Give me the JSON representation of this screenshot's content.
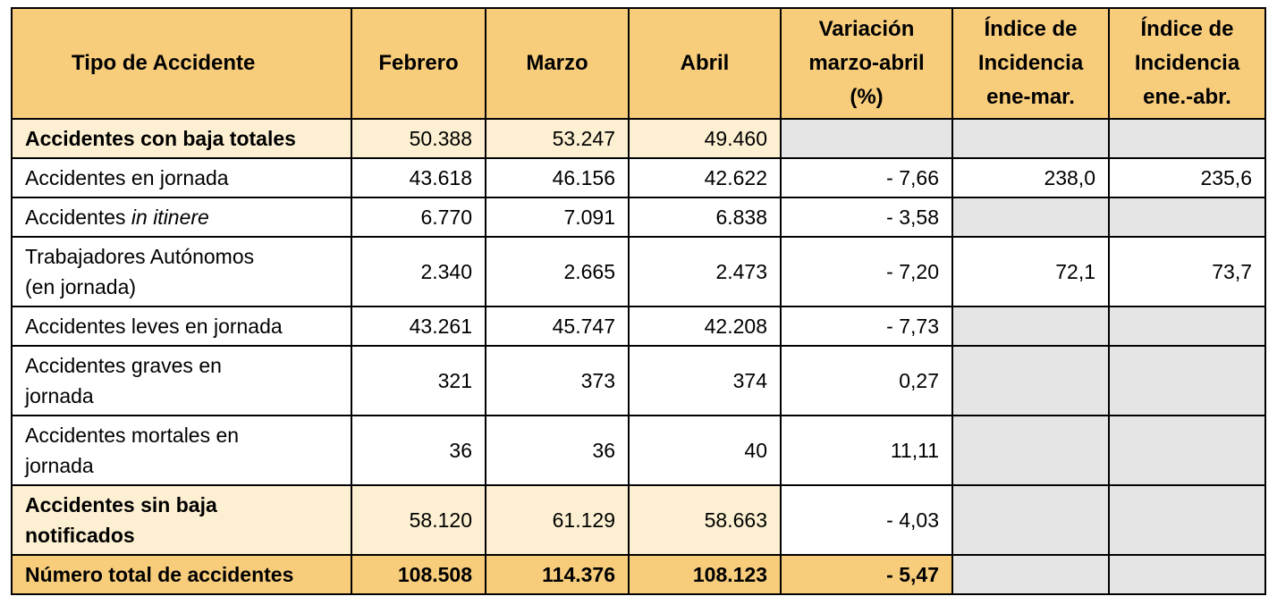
{
  "headers": {
    "tipo": "Tipo de Accidente",
    "febrero": "Febrero",
    "marzo": "Marzo",
    "abril": "Abril",
    "variacion_l1": "Variación",
    "variacion_l2": "marzo-abril",
    "variacion_l3": "(%)",
    "indice1_l1": "Índice de",
    "indice1_l2": "Incidencia",
    "indice1_l3": "ene-mar.",
    "indice2_l1": "Índice de",
    "indice2_l2": "Incidencia",
    "indice2_l3": "ene.-abr."
  },
  "rows": [
    {
      "label_a": "Accidentes con baja totales",
      "febrero": "50.388",
      "marzo": "53.247",
      "abril": "49.460",
      "variacion": "",
      "indice1": "",
      "indice2": ""
    },
    {
      "label_a": "Accidentes en jornada",
      "febrero": "43.618",
      "marzo": "46.156",
      "abril": "42.622",
      "variacion": "- 7,66",
      "indice1": "238,0",
      "indice2": "235,6"
    },
    {
      "label_a": "Accidentes ",
      "label_italic": "in itinere",
      "febrero": "6.770",
      "marzo": "7.091",
      "abril": "6.838",
      "variacion": "- 3,58",
      "indice1": "",
      "indice2": ""
    },
    {
      "label_a": "Trabajadores Autónomos",
      "label_b": "(en jornada)",
      "febrero": "2.340",
      "marzo": "2.665",
      "abril": "2.473",
      "variacion": "- 7,20",
      "indice1": "72,1",
      "indice2": "73,7"
    },
    {
      "label_a": "Accidentes leves en jornada",
      "febrero": "43.261",
      "marzo": "45.747",
      "abril": "42.208",
      "variacion": "- 7,73",
      "indice1": "",
      "indice2": ""
    },
    {
      "label_a": "Accidentes graves en",
      "label_b": "jornada",
      "febrero": "321",
      "marzo": "373",
      "abril": "374",
      "variacion": "0,27",
      "indice1": "",
      "indice2": ""
    },
    {
      "label_a": "Accidentes mortales en",
      "label_b": "jornada",
      "febrero": "36",
      "marzo": "36",
      "abril": "40",
      "variacion": "11,11",
      "indice1": "",
      "indice2": ""
    },
    {
      "label_a": "Accidentes sin baja",
      "label_b": "notificados",
      "febrero": "58.120",
      "marzo": "61.129",
      "abril": "58.663",
      "variacion": "- 4,03",
      "indice1": "",
      "indice2": ""
    },
    {
      "label_a": "Número total de accidentes",
      "febrero": "108.508",
      "marzo": "114.376",
      "abril": "108.123",
      "variacion": "- 5,47",
      "indice1": "",
      "indice2": ""
    }
  ]
}
